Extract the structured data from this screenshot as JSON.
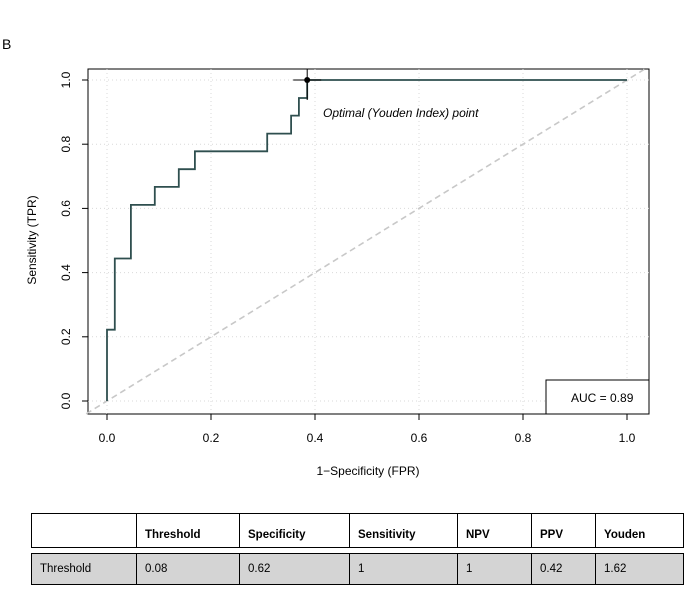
{
  "panel_label": "B",
  "chart_data": {
    "type": "line",
    "title": "",
    "xlabel": "1−Specificity (FPR)",
    "ylabel": "Sensitivity (TPR)",
    "xlim": [
      0,
      1
    ],
    "ylim": [
      0,
      1
    ],
    "xticks": [
      0.0,
      0.2,
      0.4,
      0.6,
      0.8,
      1.0
    ],
    "yticks": [
      0.0,
      0.2,
      0.4,
      0.6,
      0.8,
      1.0
    ],
    "xtick_labels": [
      "0.0",
      "0.2",
      "0.4",
      "0.6",
      "0.8",
      "1.0"
    ],
    "ytick_labels": [
      "0.0",
      "0.2",
      "0.4",
      "0.6",
      "0.8",
      "1.0"
    ],
    "grid": true,
    "series": [
      {
        "name": "ROC",
        "color": "#2f4f4f",
        "points": [
          [
            0.0,
            0.0
          ],
          [
            0.0,
            0.222
          ],
          [
            0.015,
            0.222
          ],
          [
            0.015,
            0.444
          ],
          [
            0.046,
            0.444
          ],
          [
            0.046,
            0.611
          ],
          [
            0.092,
            0.611
          ],
          [
            0.092,
            0.667
          ],
          [
            0.138,
            0.667
          ],
          [
            0.138,
            0.722
          ],
          [
            0.169,
            0.722
          ],
          [
            0.169,
            0.778
          ],
          [
            0.308,
            0.778
          ],
          [
            0.308,
            0.833
          ],
          [
            0.354,
            0.833
          ],
          [
            0.354,
            0.889
          ],
          [
            0.369,
            0.889
          ],
          [
            0.369,
            0.944
          ],
          [
            0.385,
            0.944
          ],
          [
            0.385,
            1.0
          ],
          [
            1.0,
            1.0
          ]
        ]
      }
    ],
    "reference_line": {
      "from": [
        -0.04,
        -0.04
      ],
      "to": [
        1.04,
        1.04
      ],
      "color": "#c8c8c8"
    },
    "optimal_point": {
      "x": 0.385,
      "y": 1.0,
      "label": "Optimal (Youden Index) point"
    },
    "auc_label": "AUC = 0.89"
  },
  "table": {
    "headers": [
      "",
      "Threshold",
      "Specificity",
      "Sensitivity",
      "NPV",
      "PPV",
      "Youden"
    ],
    "rows": [
      [
        "Threshold",
        "0.08",
        "0.62",
        "1",
        "1",
        "0.42",
        "1.62"
      ]
    ]
  }
}
